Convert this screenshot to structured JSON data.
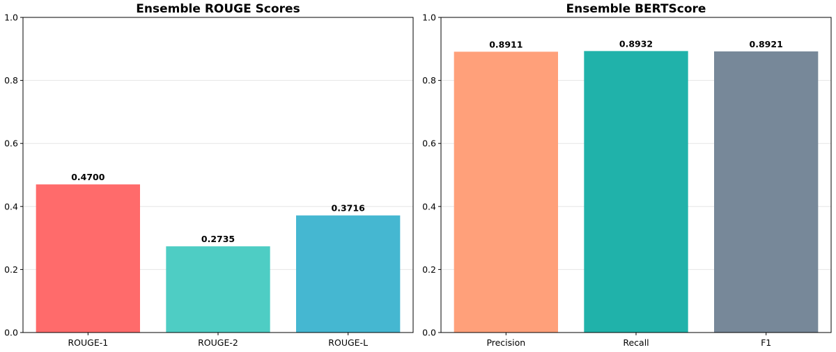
{
  "chart_data": [
    {
      "type": "bar",
      "title": "Ensemble ROUGE Scores",
      "xlabel": "",
      "ylabel": "",
      "categories": [
        "ROUGE-1",
        "ROUGE-2",
        "ROUGE-L"
      ],
      "values": [
        0.47,
        0.2735,
        0.3716
      ],
      "value_labels": [
        "0.4700",
        "0.2735",
        "0.3716"
      ],
      "colors": [
        "#ff6b6b",
        "#4ecdc4",
        "#45b7d1"
      ],
      "ylim": [
        0,
        1.0
      ],
      "yticks": [
        0.0,
        0.2,
        0.4,
        0.6,
        0.8,
        1.0
      ],
      "ytick_labels": [
        "0.0",
        "0.2",
        "0.4",
        "0.6",
        "0.8",
        "1.0"
      ],
      "grid": true
    },
    {
      "type": "bar",
      "title": "Ensemble BERTScore",
      "xlabel": "",
      "ylabel": "",
      "categories": [
        "Precision",
        "Recall",
        "F1"
      ],
      "values": [
        0.8911,
        0.8932,
        0.8921
      ],
      "value_labels": [
        "0.8911",
        "0.8932",
        "0.8921"
      ],
      "colors": [
        "#ffa07a",
        "#20b2aa",
        "#778899"
      ],
      "ylim": [
        0,
        1.0
      ],
      "yticks": [
        0.0,
        0.2,
        0.4,
        0.6,
        0.8,
        1.0
      ],
      "ytick_labels": [
        "0.0",
        "0.2",
        "0.4",
        "0.6",
        "0.8",
        "1.0"
      ],
      "grid": true
    }
  ]
}
